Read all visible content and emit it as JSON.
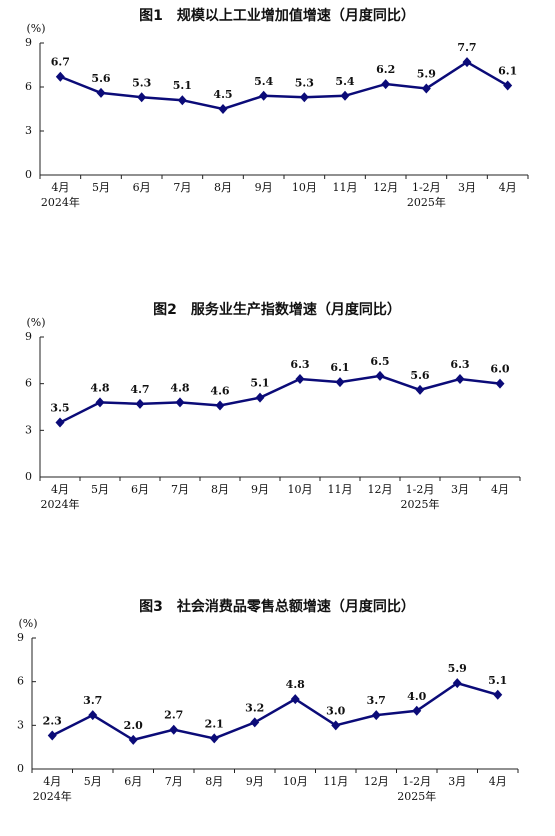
{
  "chart_data": [
    {
      "type": "line",
      "title": "图1　规模以上工业增加值增速（月度同比）",
      "unit": "(%)",
      "categories": [
        "4月",
        "5月",
        "6月",
        "7月",
        "8月",
        "9月",
        "10月",
        "11月",
        "12月",
        "1-2月",
        "3月",
        "4月"
      ],
      "x_sublabels": [
        "2024年",
        null,
        null,
        null,
        null,
        null,
        null,
        null,
        null,
        "2025年",
        null,
        null
      ],
      "values": [
        6.7,
        5.6,
        5.3,
        5.1,
        4.5,
        5.4,
        5.3,
        5.4,
        6.2,
        5.9,
        7.7,
        6.1
      ],
      "value_labels": [
        "6.7",
        "5.6",
        "5.3",
        "5.1",
        "4.5",
        "5.4",
        "5.3",
        "5.4",
        "6.2",
        "5.9",
        "7.7",
        "6.1"
      ],
      "color": "#0b0b78",
      "ylim": [
        0,
        9
      ],
      "yticks": [
        0,
        3,
        6,
        9
      ]
    },
    {
      "type": "line",
      "title": "图2　服务业生产指数增速（月度同比）",
      "unit": "(%)",
      "categories": [
        "4月",
        "5月",
        "6月",
        "7月",
        "8月",
        "9月",
        "10月",
        "11月",
        "12月",
        "1-2月",
        "3月",
        "4月"
      ],
      "x_sublabels": [
        "2024年",
        null,
        null,
        null,
        null,
        null,
        null,
        null,
        null,
        "2025年",
        null,
        null
      ],
      "values": [
        3.5,
        4.8,
        4.7,
        4.8,
        4.6,
        5.1,
        6.3,
        6.1,
        6.5,
        5.6,
        6.3,
        6.0
      ],
      "value_labels": [
        "3.5",
        "4.8",
        "4.7",
        "4.8",
        "4.6",
        "5.1",
        "6.3",
        "6.1",
        "6.5",
        "5.6",
        "6.3",
        "6.0"
      ],
      "color": "#0b0b78",
      "ylim": [
        0,
        9
      ],
      "yticks": [
        0,
        3,
        6,
        9
      ]
    },
    {
      "type": "line",
      "title": "图3　社会消费品零售总额增速（月度同比）",
      "unit": "(%)",
      "categories": [
        "4月",
        "5月",
        "6月",
        "7月",
        "8月",
        "9月",
        "10月",
        "11月",
        "12月",
        "1-2月",
        "3月",
        "4月"
      ],
      "x_sublabels": [
        "2024年",
        null,
        null,
        null,
        null,
        null,
        null,
        null,
        null,
        "2025年",
        null,
        null
      ],
      "values": [
        2.3,
        3.7,
        2.0,
        2.7,
        2.1,
        3.2,
        4.8,
        3.0,
        3.7,
        4.0,
        5.9,
        5.1
      ],
      "value_labels": [
        "2.3",
        "3.7",
        "2.0",
        "2.7",
        "2.1",
        "3.2",
        "4.8",
        "3.0",
        "3.7",
        "4.0",
        "5.9",
        "5.1"
      ],
      "color": "#0b0b78",
      "ylim": [
        0,
        9
      ],
      "yticks": [
        0,
        3,
        6,
        9
      ]
    }
  ]
}
